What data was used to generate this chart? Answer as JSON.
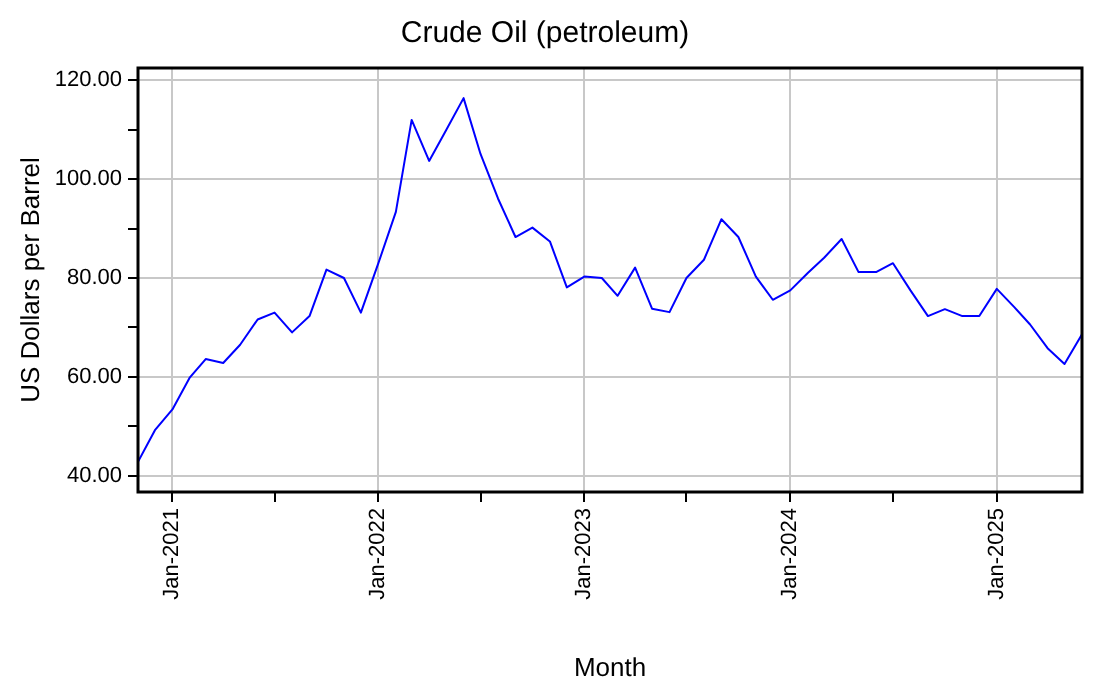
{
  "chart_data": {
    "type": "line",
    "title": "Crude Oil (petroleum)",
    "xlabel": "Month",
    "ylabel": "US Dollars per Barrel",
    "x": [
      "2020-11",
      "2020-12",
      "2021-01",
      "2021-02",
      "2021-03",
      "2021-04",
      "2021-05",
      "2021-06",
      "2021-07",
      "2021-08",
      "2021-09",
      "2021-10",
      "2021-11",
      "2021-12",
      "2022-01",
      "2022-02",
      "2022-03",
      "2022-04",
      "2022-05",
      "2022-06",
      "2022-07",
      "2022-08",
      "2022-09",
      "2022-10",
      "2022-11",
      "2022-12",
      "2023-01",
      "2023-02",
      "2023-03",
      "2023-04",
      "2023-05",
      "2023-06",
      "2023-07",
      "2023-08",
      "2023-09",
      "2023-10",
      "2023-11",
      "2023-12",
      "2024-01",
      "2024-02",
      "2024-03",
      "2024-04",
      "2024-05",
      "2024-06",
      "2024-07",
      "2024-08",
      "2024-09",
      "2024-10",
      "2024-11",
      "2024-12",
      "2025-01",
      "2025-02",
      "2025-03",
      "2025-04",
      "2025-05",
      "2025-06"
    ],
    "series": [
      {
        "color": "#0000ff",
        "values": [
          42.8,
          49.2,
          53.4,
          59.9,
          63.6,
          62.8,
          66.5,
          71.6,
          73.0,
          69.0,
          72.3,
          81.7,
          80.0,
          73.0,
          83.0,
          93.4,
          112.0,
          103.7,
          109.9,
          116.4,
          105.1,
          96.1,
          88.3,
          90.2,
          87.4,
          78.1,
          80.3,
          80.0,
          76.4,
          82.1,
          73.8,
          73.1,
          80.0,
          83.7,
          91.9,
          88.3,
          80.3,
          75.6,
          77.5,
          81.0,
          84.1,
          87.9,
          81.2,
          81.2,
          83.0,
          77.5,
          72.3,
          73.7,
          72.3,
          72.3,
          77.8,
          74.1,
          70.6,
          65.8,
          62.6,
          68.6
        ]
      }
    ],
    "xlim": [
      "2020-11",
      "2025-06"
    ],
    "xticks": [
      {
        "value": "2021-01",
        "label": "Jan-2021"
      },
      {
        "value": "2021-07",
        "label": null
      },
      {
        "value": "2022-01",
        "label": "Jan-2022"
      },
      {
        "value": "2022-07",
        "label": null
      },
      {
        "value": "2023-01",
        "label": "Jan-2023"
      },
      {
        "value": "2023-07",
        "label": null
      },
      {
        "value": "2024-01",
        "label": "Jan-2024"
      },
      {
        "value": "2024-07",
        "label": null
      },
      {
        "value": "2025-01",
        "label": "Jan-2025"
      }
    ],
    "ylim": [
      36.7,
      122.5
    ],
    "yticks": [
      {
        "value": 40,
        "label": "40.00"
      },
      {
        "value": 50,
        "label": null
      },
      {
        "value": 60,
        "label": "60.00"
      },
      {
        "value": 70,
        "label": null
      },
      {
        "value": 80,
        "label": "80.00"
      },
      {
        "value": 90,
        "label": null
      },
      {
        "value": 100,
        "label": "100.00"
      },
      {
        "value": 110,
        "label": null
      },
      {
        "value": 120,
        "label": "120.00"
      }
    ],
    "grid": true,
    "legend": false,
    "marker": "none",
    "line_style": "solid"
  }
}
